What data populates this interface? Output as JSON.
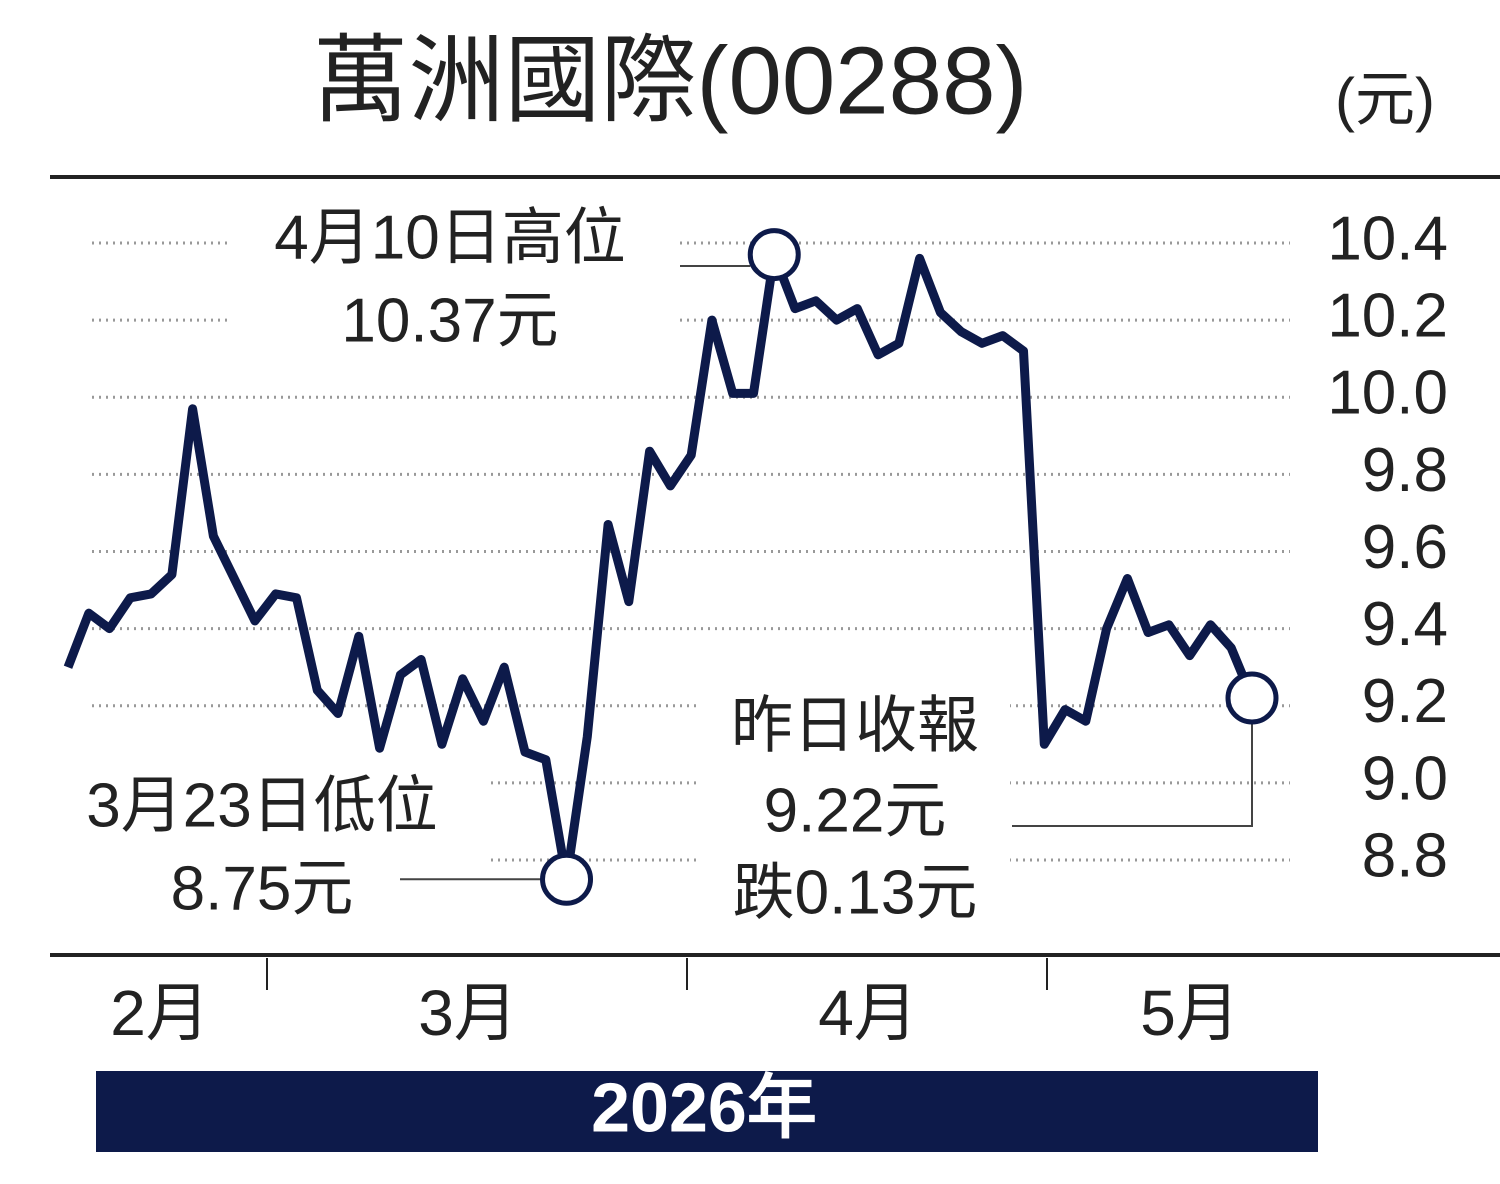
{
  "chart_data": {
    "type": "line",
    "title": "萬洲國際(00288)",
    "unit_label": "(元)",
    "x_label": "2026年",
    "month_labels": [
      "2月",
      "3月",
      "4月",
      "5月"
    ],
    "categories": [
      null,
      null,
      null,
      null,
      null,
      null,
      null,
      null,
      null,
      null,
      null,
      null,
      null,
      null,
      null,
      null,
      null,
      null,
      null,
      null,
      null,
      null,
      null,
      null,
      null,
      null,
      null,
      null,
      null,
      null,
      null,
      null,
      null,
      null,
      null,
      null,
      null,
      null,
      null,
      null,
      null,
      null,
      null,
      null,
      null,
      null,
      null,
      null,
      null,
      null,
      null,
      null,
      null,
      null,
      null,
      null,
      null,
      null
    ],
    "series": [
      {
        "name": "萬洲國際",
        "color": "#0d1a4a",
        "values": [
          9.3,
          9.44,
          9.4,
          9.48,
          9.49,
          9.54,
          9.97,
          9.64,
          9.53,
          9.42,
          9.49,
          9.48,
          9.24,
          9.18,
          9.38,
          9.09,
          9.28,
          9.32,
          9.1,
          9.27,
          9.16,
          9.3,
          9.08,
          9.06,
          8.75,
          9.12,
          9.67,
          9.47,
          9.86,
          9.77,
          9.85,
          10.2,
          10.01,
          10.01,
          10.37,
          10.23,
          10.25,
          10.2,
          10.23,
          10.11,
          10.14,
          10.36,
          10.22,
          10.17,
          10.14,
          10.16,
          10.12,
          9.1,
          9.19,
          9.16,
          9.4,
          9.53,
          9.39,
          9.41,
          9.33,
          9.41,
          9.35,
          9.22
        ],
        "value_labels": [
          null,
          null,
          null,
          null,
          null,
          null,
          null,
          null,
          null,
          null,
          null,
          null,
          null,
          null,
          null,
          null,
          null,
          null,
          null,
          null,
          null,
          null,
          null,
          null,
          "8.75元",
          null,
          null,
          null,
          null,
          null,
          null,
          null,
          null,
          null,
          "10.37元",
          null,
          null,
          null,
          null,
          null,
          null,
          null,
          null,
          null,
          null,
          null,
          null,
          null,
          null,
          null,
          null,
          null,
          null,
          null,
          null,
          null,
          null,
          "9.22元"
        ]
      }
    ],
    "annotations": {
      "high": "4月10日高位",
      "low": "3月23日低位",
      "close": "昨日收報",
      "change": "跌0.13元"
    },
    "ylim": [
      8.8,
      10.4
    ],
    "yticks": [
      {
        "value": 10.4,
        "label": "10.4"
      },
      {
        "value": 10.2,
        "label": "10.2"
      },
      {
        "value": 10,
        "label": "10.0"
      },
      9.8,
      9.6,
      9.4,
      9.2,
      {
        "value": 9,
        "label": "9.0"
      },
      8.8
    ],
    "grid": true
  }
}
